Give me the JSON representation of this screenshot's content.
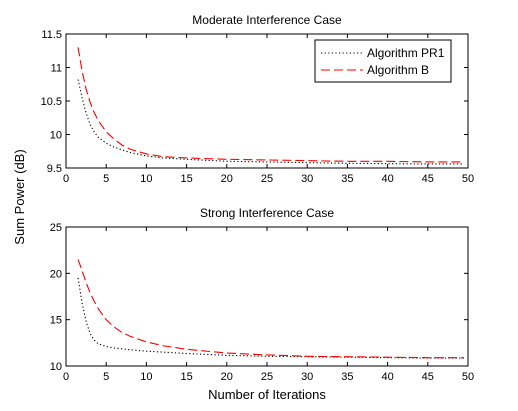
{
  "shared": {
    "ylabel": "Sum Power (dB)",
    "xlabel": "Number of Iterations"
  },
  "legend": {
    "placement": "top-right",
    "items": [
      {
        "label": "Algorithm PR1",
        "color": "#000000",
        "style": "dotted"
      },
      {
        "label": "Algorithm B",
        "color": "#ff0000",
        "style": "dashed"
      }
    ]
  },
  "chart_data": [
    {
      "type": "line",
      "title": "Moderate Interference Case",
      "xlabel": "",
      "ylabel": "",
      "xlim": [
        0,
        50
      ],
      "ylim": [
        9.5,
        11.5
      ],
      "xticks": [
        0,
        5,
        10,
        15,
        20,
        25,
        30,
        35,
        40,
        45,
        50
      ],
      "yticks": [
        9.5,
        10,
        10.5,
        11,
        11.5
      ],
      "grid": false,
      "legend": "top-right",
      "x": [
        1.5,
        2,
        2.5,
        3,
        3.5,
        4,
        5,
        6,
        7,
        8,
        10,
        12,
        15,
        20,
        25,
        30,
        35,
        40,
        45,
        49.5
      ],
      "series": [
        {
          "name": "Algorithm PR1",
          "color": "#000000",
          "style": "dotted",
          "values": [
            10.82,
            10.55,
            10.32,
            10.15,
            10.04,
            9.96,
            9.87,
            9.81,
            9.77,
            9.73,
            9.68,
            9.65,
            9.63,
            9.6,
            9.59,
            9.58,
            9.57,
            9.565,
            9.56,
            9.56
          ]
        },
        {
          "name": "Algorithm B",
          "color": "#ff0000",
          "style": "dashed",
          "values": [
            11.3,
            10.95,
            10.68,
            10.48,
            10.33,
            10.21,
            10.04,
            9.93,
            9.84,
            9.78,
            9.71,
            9.67,
            9.65,
            9.63,
            9.62,
            9.61,
            9.6,
            9.6,
            9.59,
            9.59
          ]
        }
      ]
    },
    {
      "type": "line",
      "title": "Strong Interference Case",
      "xlabel": "Number of Iterations",
      "ylabel": "",
      "xlim": [
        0,
        50
      ],
      "ylim": [
        10,
        25
      ],
      "xticks": [
        0,
        5,
        10,
        15,
        20,
        25,
        30,
        35,
        40,
        45,
        50
      ],
      "yticks": [
        10,
        15,
        20,
        25
      ],
      "grid": false,
      "x": [
        1.5,
        2,
        2.5,
        3,
        3.5,
        4,
        5,
        6,
        7,
        8,
        10,
        12,
        15,
        20,
        25,
        30,
        35,
        40,
        45,
        49.5
      ],
      "series": [
        {
          "name": "Algorithm PR1",
          "color": "#000000",
          "style": "dotted",
          "values": [
            19.5,
            16.8,
            14.8,
            13.5,
            12.8,
            12.4,
            12.1,
            11.95,
            11.85,
            11.75,
            11.6,
            11.5,
            11.35,
            11.15,
            11.05,
            11.0,
            10.95,
            10.9,
            10.85,
            10.85
          ]
        },
        {
          "name": "Algorithm B",
          "color": "#ff0000",
          "style": "dashed",
          "values": [
            21.5,
            20.3,
            19.0,
            17.9,
            17.0,
            16.2,
            15.0,
            14.2,
            13.6,
            13.2,
            12.6,
            12.2,
            11.8,
            11.4,
            11.2,
            11.05,
            11.0,
            10.95,
            10.9,
            10.9
          ]
        }
      ]
    }
  ]
}
